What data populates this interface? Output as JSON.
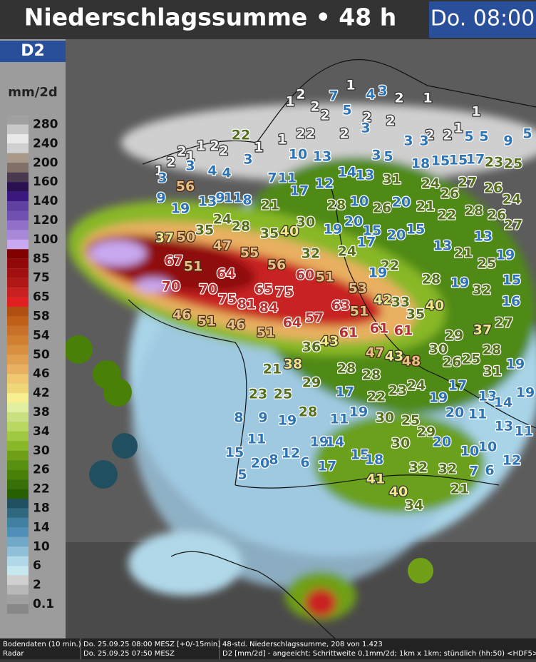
{
  "header": {
    "title": "Niederschlagssumme • 48 h",
    "time": "Do. 08:00"
  },
  "legend": {
    "model": "D2",
    "unit": "mm/2d",
    "items": [
      {
        "label": 280,
        "colors": [
          "#a0a0a0",
          "#c8c8c8"
        ]
      },
      {
        "label": 240,
        "colors": [
          "#e8e8e8",
          "#d0d0d0"
        ]
      },
      {
        "label": 200,
        "colors": [
          "#a89888",
          "#807068"
        ]
      },
      {
        "label": 160,
        "colors": [
          "#4a3a50",
          "#2a1050"
        ]
      },
      {
        "label": 140,
        "colors": [
          "#3a1880",
          "#6040a0"
        ]
      },
      {
        "label": 120,
        "colors": [
          "#7050b0",
          "#9070c8"
        ]
      },
      {
        "label": 100,
        "colors": [
          "#a888d8",
          "#c8a8f0"
        ]
      },
      {
        "label": 85,
        "colors": [
          "#800000",
          "#900808"
        ]
      },
      {
        "label": 75,
        "colors": [
          "#a01010",
          "#b01818"
        ]
      },
      {
        "label": 65,
        "colors": [
          "#c82020",
          "#e02020"
        ]
      },
      {
        "label": 58,
        "colors": [
          "#b05010",
          "#c06018"
        ]
      },
      {
        "label": 54,
        "colors": [
          "#c87028",
          "#d08030"
        ]
      },
      {
        "label": 50,
        "colors": [
          "#d89040",
          "#e0a050"
        ]
      },
      {
        "label": 46,
        "colors": [
          "#e8b060",
          "#f0c870"
        ]
      },
      {
        "label": 42,
        "colors": [
          "#f0d878",
          "#f8f090"
        ]
      },
      {
        "label": 38,
        "colors": [
          "#e0f0a0",
          "#c8e080"
        ]
      },
      {
        "label": 34,
        "colors": [
          "#b8d860",
          "#a0c840"
        ]
      },
      {
        "label": 30,
        "colors": [
          "#88b828",
          "#70a018"
        ]
      },
      {
        "label": 26,
        "colors": [
          "#589010",
          "#488008"
        ]
      },
      {
        "label": 22,
        "colors": [
          "#387008",
          "#286000"
        ]
      },
      {
        "label": 18,
        "colors": [
          "#205060",
          "#306880"
        ]
      },
      {
        "label": 14,
        "colors": [
          "#4080a0",
          "#5090b8"
        ]
      },
      {
        "label": 10,
        "colors": [
          "#70a8c8",
          "#90c0d8"
        ]
      },
      {
        "label": 6,
        "colors": [
          "#b0d8e8",
          "#c8e8f0"
        ]
      },
      {
        "label": 2,
        "colors": [
          "#d0d0d0",
          "#b8b8b8"
        ]
      },
      {
        "label": 0.1,
        "colors": [
          "#a0a0a0",
          "#888888"
        ]
      }
    ]
  },
  "stations": [
    1,
    2,
    1,
    7,
    4,
    3,
    2,
    1,
    2,
    5,
    2,
    2,
    1,
    2,
    3,
    2,
    1,
    2,
    2,
    22,
    3,
    2,
    2,
    1,
    5,
    5,
    9,
    5,
    3,
    1,
    2,
    2,
    1,
    2,
    2,
    1,
    3,
    10,
    13,
    3,
    5,
    18,
    15,
    15,
    17,
    23,
    25,
    3,
    1,
    3,
    4,
    4,
    14,
    13,
    7,
    11,
    12,
    31,
    24,
    26,
    27,
    26,
    24,
    9,
    56,
    17,
    19,
    13,
    9,
    11,
    8,
    21,
    28,
    10,
    26,
    20,
    21,
    22,
    28,
    26,
    27,
    37,
    50,
    35,
    24,
    28,
    35,
    40,
    30,
    19,
    20,
    15,
    17,
    20,
    15,
    13,
    47,
    55,
    32,
    24,
    13,
    21,
    19,
    22,
    25,
    67,
    51,
    56,
    64,
    60,
    51,
    19,
    28,
    19,
    15,
    70,
    70,
    75,
    81,
    65,
    75,
    84,
    53,
    32,
    63,
    42,
    33,
    16,
    51,
    40,
    35,
    57,
    64,
    46,
    51,
    46,
    51,
    61,
    61,
    61,
    37,
    27,
    43,
    36,
    29,
    47,
    43,
    48,
    30,
    26,
    25,
    28,
    31,
    19,
    21,
    38,
    28,
    28,
    29,
    17,
    24,
    22,
    23,
    13,
    14,
    19,
    23,
    25,
    17,
    19,
    28,
    11,
    19,
    20,
    30,
    25,
    11,
    8,
    9,
    19,
    29,
    13,
    11,
    11,
    19,
    14,
    30,
    20,
    10,
    10,
    15,
    8,
    12,
    6,
    15,
    18,
    17,
    20,
    32,
    32,
    12,
    7,
    6,
    5,
    41,
    21,
    40,
    34
  ],
  "footer": {
    "left_top": "Bodendaten (10 min.)",
    "left_bottom": "Radar",
    "mid_top": "Do. 25.09.25 08:00 MESZ [+0/-15min]",
    "mid_bottom": "Do. 25.09.25 07:50 MESZ",
    "mid_bottom_color": "#e01010",
    "right_top": "48-std. Niederschlagssumme, 208 von 1.423",
    "right_bottom": "D2 [mm/2d] - angeeicht; Schrittweite 0,1mm/2d; 1km x 1km; stündlich (hh:50) <HDF5>"
  }
}
